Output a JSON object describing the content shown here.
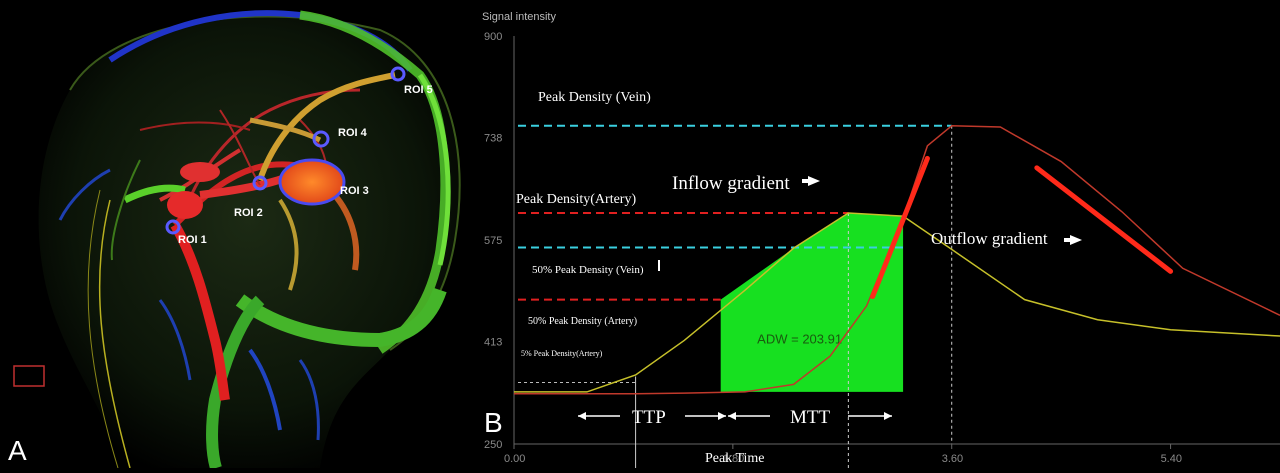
{
  "panel_a": {
    "letter": "A",
    "rois": [
      "ROI 1",
      "ROI 2",
      "ROI 3",
      "ROI 4",
      "ROI 5"
    ]
  },
  "panel_b": {
    "letter": "B"
  },
  "chart_data": {
    "type": "line",
    "ylabel": "Signal intensity",
    "ylim": [
      250,
      900
    ],
    "xlim": [
      0,
      6.3
    ],
    "y_ticks": [
      "900",
      "738",
      "575",
      "413",
      "250"
    ],
    "x_ticks": [
      "0.00",
      "1.80",
      "3.60",
      "5.40"
    ],
    "x_tick_values": [
      0,
      1.8,
      3.6,
      5.4
    ],
    "series": [
      {
        "color": "#c6c02a",
        "x": [
          0,
          0.6,
          1.0,
          1.4,
          1.9,
          2.3,
          2.75,
          3.2,
          3.6,
          4.2,
          4.8,
          5.4,
          6.3
        ],
        "y": [
          333,
          333,
          360,
          415,
          495,
          562,
          618,
          613,
          560,
          480,
          448,
          432,
          422
        ]
      },
      {
        "color": "#c0392b",
        "x": [
          0,
          0.6,
          1.0,
          1.4,
          1.9,
          2.3,
          2.6,
          2.9,
          3.2,
          3.4,
          3.6,
          4.0,
          4.5,
          5.0,
          5.5,
          6.3
        ],
        "y": [
          330,
          330,
          330,
          331,
          333,
          345,
          390,
          470,
          610,
          725,
          757,
          755,
          700,
          620,
          530,
          455
        ]
      }
    ],
    "annotations": {
      "peak_density_vein": "Peak Density (Vein)",
      "peak_density_artery": "Peak Density(Artery)",
      "half_peak_vein": "50% Peak Density (Vein)",
      "half_peak_artery": "50% Peak Density (Artery)",
      "five_pct_artery": "5% Peak Density(Artery)",
      "inflow_gradient": "Inflow gradient",
      "outflow_gradient": "Outflow gradient",
      "adw": "ADW = 203.91",
      "ttp": "TTP",
      "mtt": "MTT",
      "peak_time": "Peak Time"
    },
    "reference_levels": {
      "peak_vein": 757,
      "peak_artery": 618,
      "half_vein": 563,
      "half_artery": 480,
      "five_pct_artery": 348
    },
    "reference_times": {
      "five_pct_time": 1.0,
      "peak_time": 2.75,
      "vein_peak_time": 3.6
    },
    "adw_region": {
      "x": [
        1.7,
        1.7,
        2.3,
        2.75,
        3.2,
        3.2
      ],
      "y": [
        333,
        480,
        562,
        618,
        613,
        333
      ]
    }
  }
}
